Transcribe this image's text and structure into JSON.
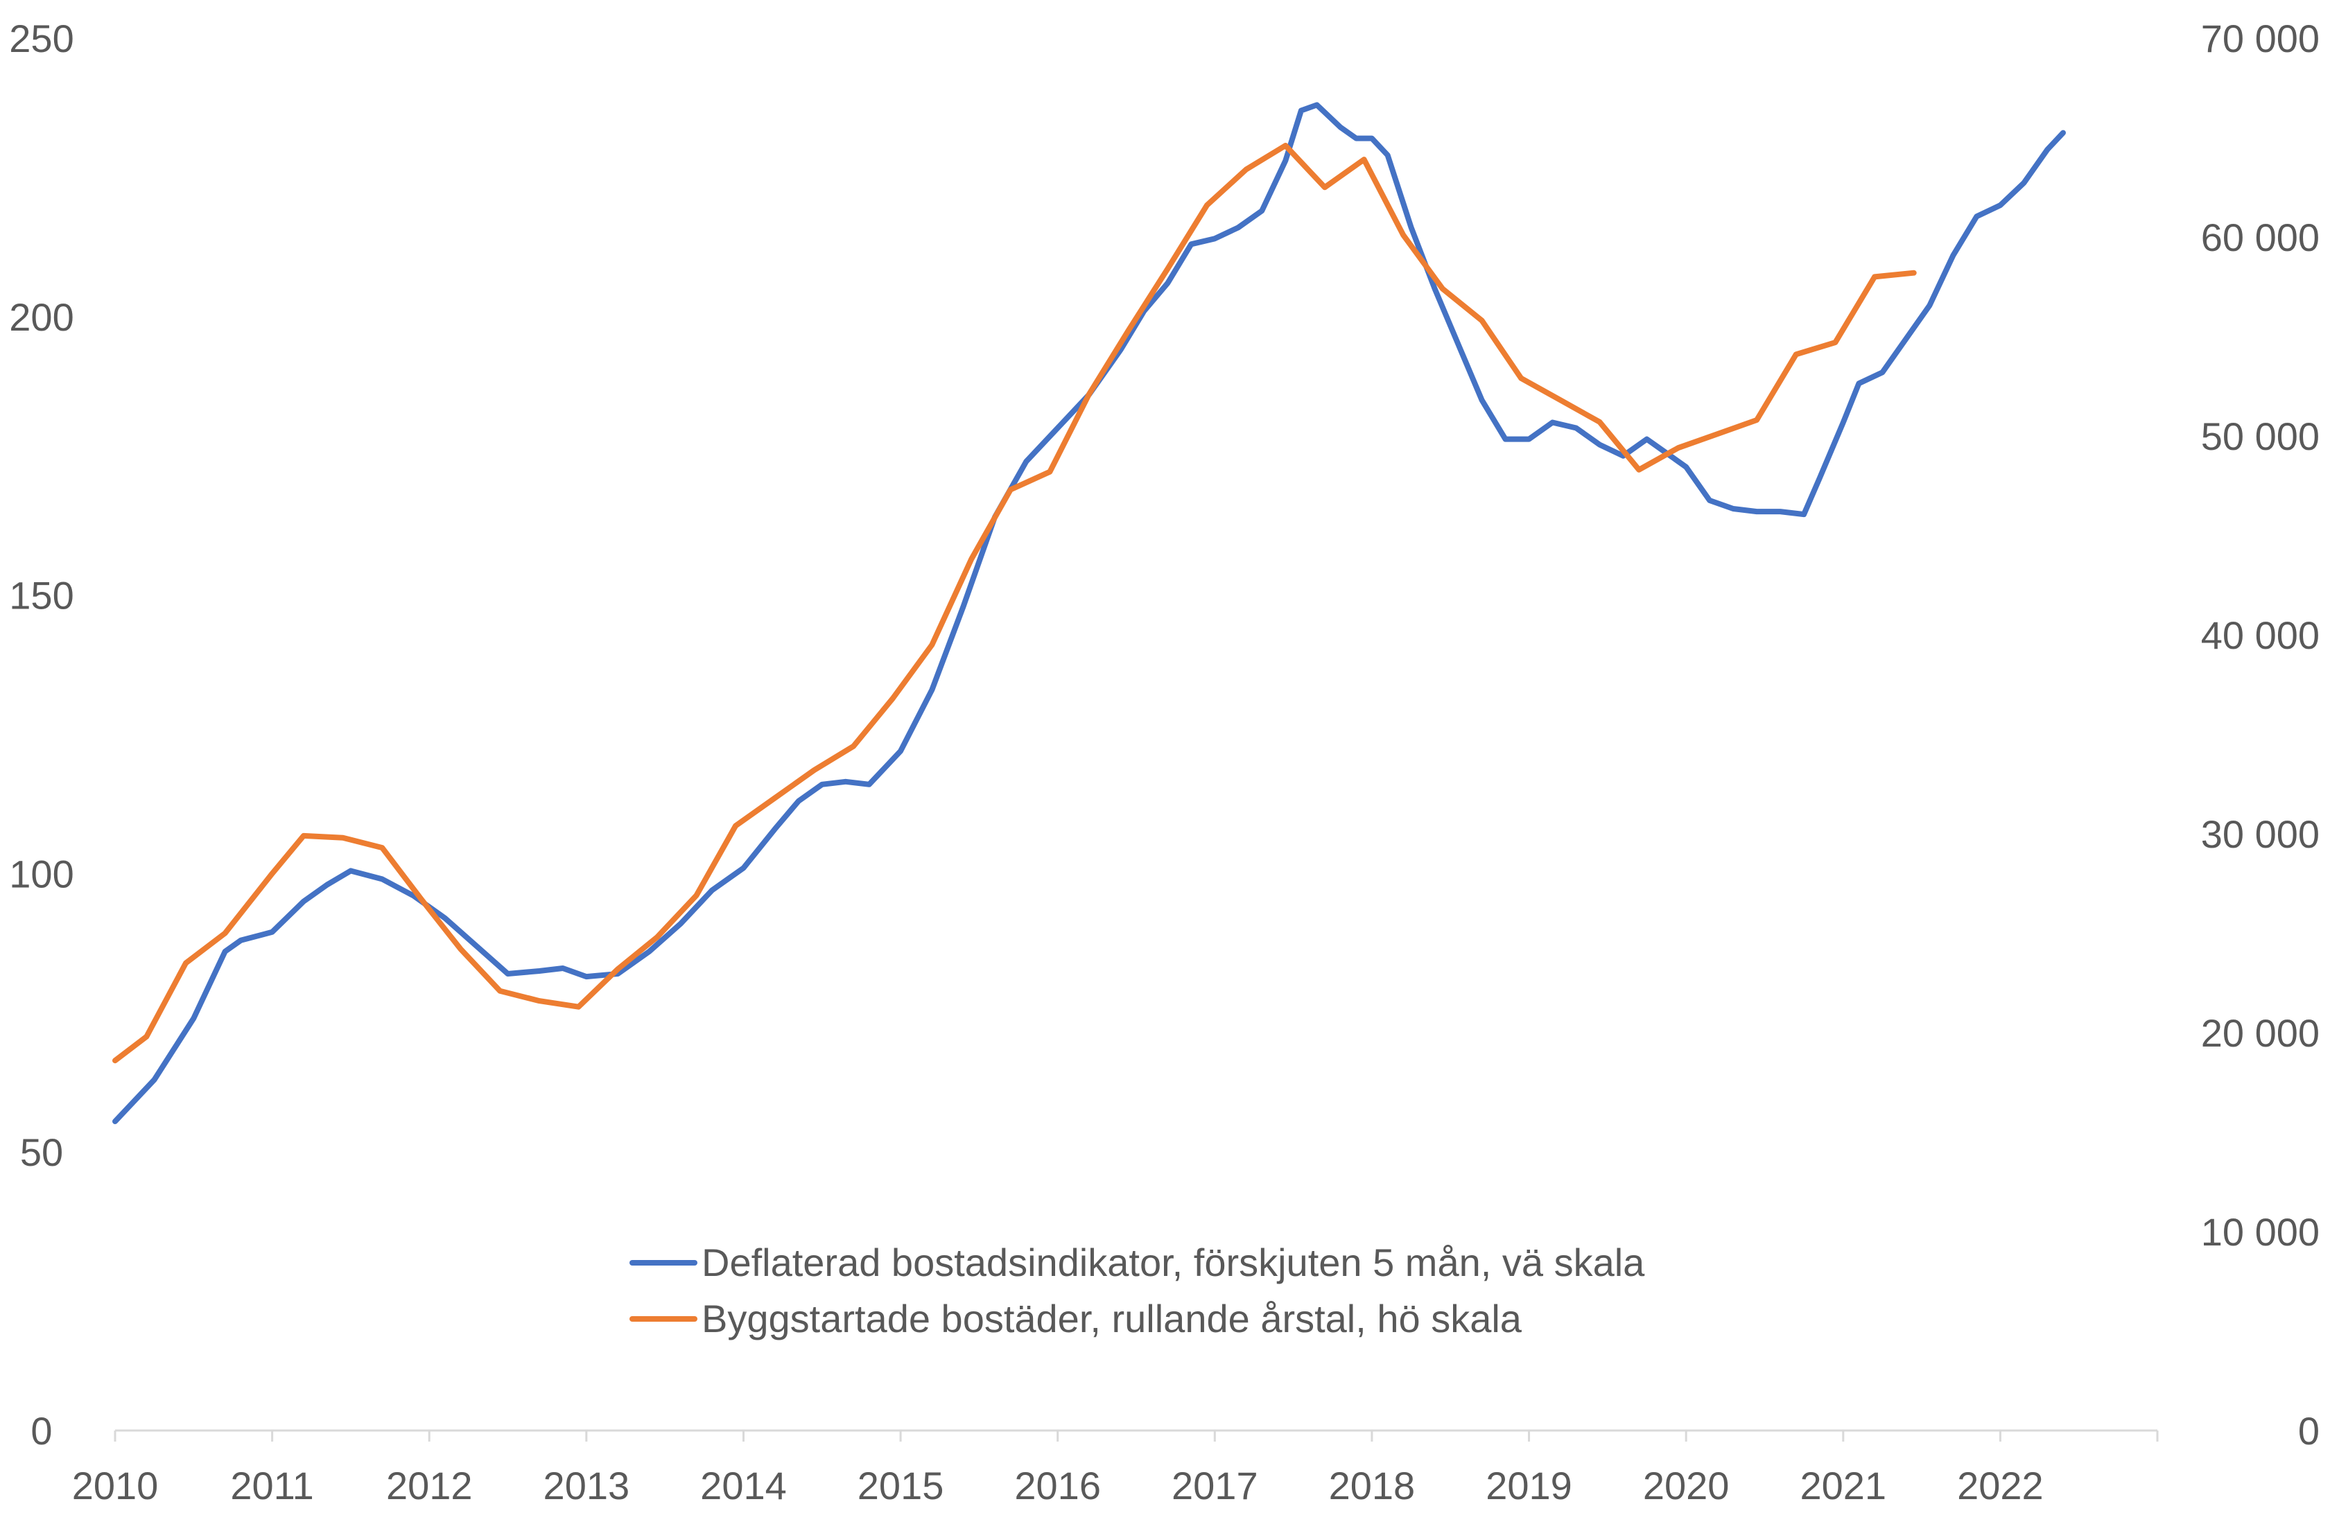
{
  "chart_data": {
    "type": "line",
    "title": "",
    "x_axis": {
      "min": 2010,
      "max": 2023,
      "tick_labels": [
        "2010",
        "2011",
        "2012",
        "2013",
        "2014",
        "2015",
        "2016",
        "2017",
        "2018",
        "2019",
        "2020",
        "2021",
        "2022"
      ]
    },
    "y_left": {
      "min": 0,
      "max": 250,
      "tick_values": [
        0,
        50,
        100,
        150,
        200,
        250
      ],
      "tick_labels": [
        "0",
        "50",
        "100",
        "150",
        "200",
        "250"
      ]
    },
    "y_right": {
      "min": 0,
      "max": 70000,
      "tick_values": [
        0,
        10000,
        20000,
        30000,
        40000,
        50000,
        60000,
        70000
      ],
      "tick_labels": [
        "0",
        "10 000",
        "20 000",
        "30 000",
        "40 000",
        "50 000",
        "60 000",
        "70 000"
      ]
    },
    "legend_position": "bottom-center",
    "series": [
      {
        "name": "Deflaterad bostadsindikator, förskjuten 5 mån, vä skala",
        "axis": "left",
        "color": "#4472C4",
        "points": [
          [
            2010.0,
            55.5
          ],
          [
            2010.25,
            63
          ],
          [
            2010.5,
            74
          ],
          [
            2010.7,
            86
          ],
          [
            2010.8,
            88
          ],
          [
            2011.0,
            89.5
          ],
          [
            2011.2,
            95
          ],
          [
            2011.35,
            98
          ],
          [
            2011.5,
            100.5
          ],
          [
            2011.7,
            99
          ],
          [
            2011.9,
            96
          ],
          [
            2012.1,
            92
          ],
          [
            2012.3,
            87
          ],
          [
            2012.5,
            82
          ],
          [
            2012.7,
            82.5
          ],
          [
            2012.85,
            83
          ],
          [
            2013.0,
            81.5
          ],
          [
            2013.2,
            82
          ],
          [
            2013.4,
            86
          ],
          [
            2013.6,
            91
          ],
          [
            2013.8,
            97
          ],
          [
            2014.0,
            101
          ],
          [
            2014.2,
            108
          ],
          [
            2014.35,
            113
          ],
          [
            2014.5,
            116
          ],
          [
            2014.65,
            116.5
          ],
          [
            2014.8,
            116
          ],
          [
            2015.0,
            122
          ],
          [
            2015.2,
            133
          ],
          [
            2015.4,
            148
          ],
          [
            2015.6,
            164
          ],
          [
            2015.8,
            174
          ],
          [
            2016.0,
            180
          ],
          [
            2016.2,
            186
          ],
          [
            2016.4,
            194
          ],
          [
            2016.55,
            201
          ],
          [
            2016.7,
            206
          ],
          [
            2016.85,
            213
          ],
          [
            2017.0,
            214
          ],
          [
            2017.15,
            216
          ],
          [
            2017.3,
            219
          ],
          [
            2017.45,
            228
          ],
          [
            2017.55,
            237
          ],
          [
            2017.65,
            238
          ],
          [
            2017.8,
            234
          ],
          [
            2017.9,
            232
          ],
          [
            2018.0,
            232
          ],
          [
            2018.1,
            229
          ],
          [
            2018.25,
            216
          ],
          [
            2018.4,
            205
          ],
          [
            2018.55,
            195
          ],
          [
            2018.7,
            185
          ],
          [
            2018.85,
            178
          ],
          [
            2019.0,
            178
          ],
          [
            2019.15,
            181
          ],
          [
            2019.3,
            180
          ],
          [
            2019.45,
            177
          ],
          [
            2019.6,
            175
          ],
          [
            2019.75,
            178
          ],
          [
            2019.9,
            175
          ],
          [
            2020.0,
            173
          ],
          [
            2020.15,
            167
          ],
          [
            2020.3,
            165.5
          ],
          [
            2020.45,
            165
          ],
          [
            2020.6,
            165
          ],
          [
            2020.75,
            164.5
          ],
          [
            2020.85,
            171
          ],
          [
            2021.0,
            181
          ],
          [
            2021.1,
            188
          ],
          [
            2021.25,
            190
          ],
          [
            2021.4,
            196
          ],
          [
            2021.55,
            202
          ],
          [
            2021.7,
            211
          ],
          [
            2021.85,
            218
          ],
          [
            2022.0,
            220
          ],
          [
            2022.15,
            224
          ],
          [
            2022.3,
            230
          ],
          [
            2022.4,
            233
          ]
        ]
      },
      {
        "name": "Byggstartade bostäder, rullande årstal, hö skala",
        "axis": "right",
        "color": "#ED7D31",
        "points": [
          [
            2010.0,
            18600
          ],
          [
            2010.2,
            19800
          ],
          [
            2010.45,
            23500
          ],
          [
            2010.7,
            25000
          ],
          [
            2011.0,
            28000
          ],
          [
            2011.2,
            29900
          ],
          [
            2011.45,
            29800
          ],
          [
            2011.7,
            29300
          ],
          [
            2011.95,
            26700
          ],
          [
            2012.2,
            24200
          ],
          [
            2012.45,
            22100
          ],
          [
            2012.7,
            21600
          ],
          [
            2012.95,
            21300
          ],
          [
            2013.2,
            23200
          ],
          [
            2013.45,
            24800
          ],
          [
            2013.7,
            26900
          ],
          [
            2013.95,
            30400
          ],
          [
            2014.2,
            31800
          ],
          [
            2014.45,
            33200
          ],
          [
            2014.7,
            34400
          ],
          [
            2014.95,
            36800
          ],
          [
            2015.2,
            39500
          ],
          [
            2015.45,
            43800
          ],
          [
            2015.7,
            47300
          ],
          [
            2015.95,
            48200
          ],
          [
            2016.2,
            52100
          ],
          [
            2016.45,
            55300
          ],
          [
            2016.7,
            58400
          ],
          [
            2016.95,
            61600
          ],
          [
            2017.2,
            63400
          ],
          [
            2017.45,
            64600
          ],
          [
            2017.7,
            62500
          ],
          [
            2017.95,
            63900
          ],
          [
            2018.2,
            60100
          ],
          [
            2018.45,
            57400
          ],
          [
            2018.7,
            55800
          ],
          [
            2018.95,
            52900
          ],
          [
            2019.2,
            51800
          ],
          [
            2019.45,
            50700
          ],
          [
            2019.7,
            48300
          ],
          [
            2019.95,
            49400
          ],
          [
            2020.2,
            50100
          ],
          [
            2020.45,
            50800
          ],
          [
            2020.7,
            54100
          ],
          [
            2020.95,
            54700
          ],
          [
            2021.2,
            58000
          ],
          [
            2021.45,
            58200
          ]
        ]
      }
    ]
  }
}
